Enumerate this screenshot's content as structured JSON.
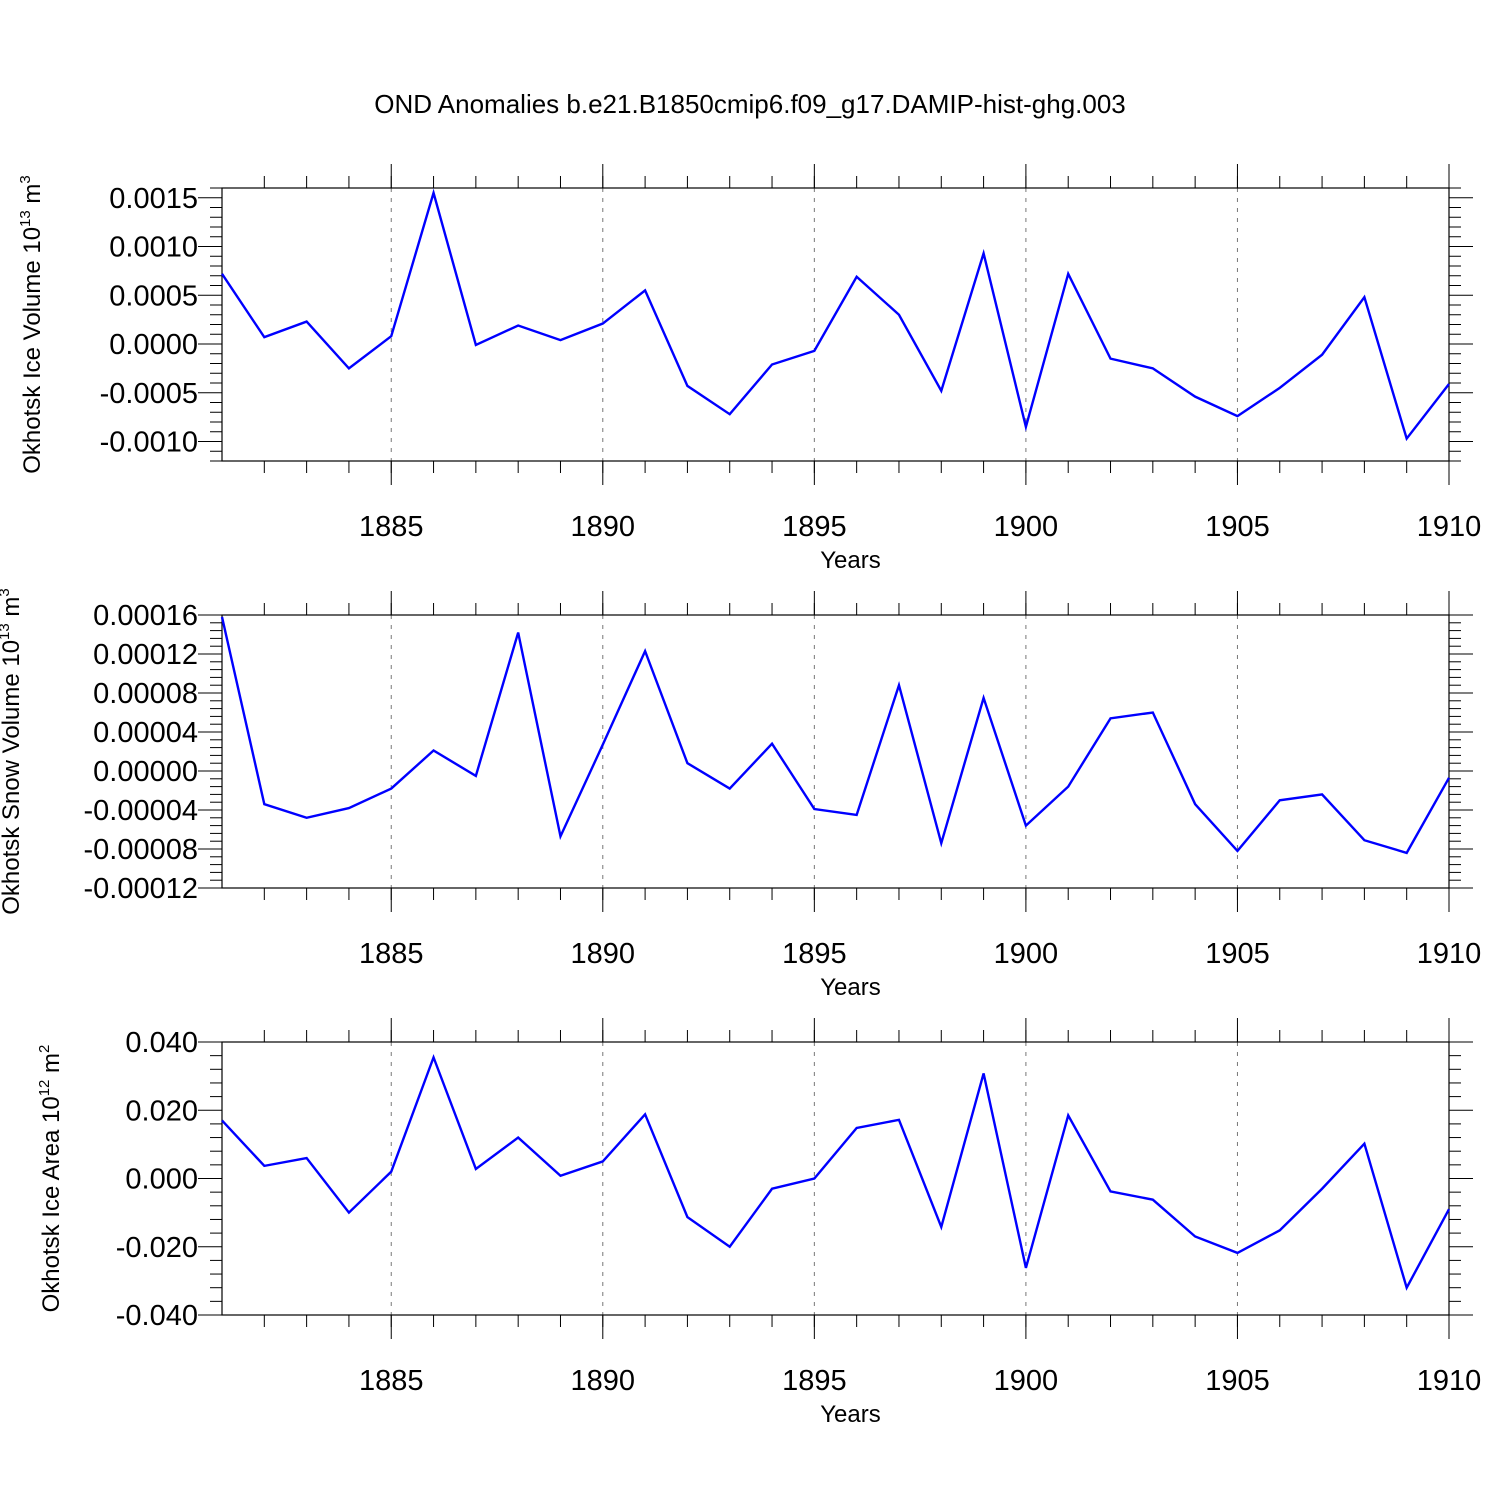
{
  "title": "OND Anomalies b.e21.B1850cmip6.f09_g17.DAMIP-hist-ghg.003",
  "colors": {
    "line": "#0000ff",
    "axis": "#000000",
    "grid": "#777777"
  },
  "chart_data": [
    {
      "type": "line",
      "title": "OND Anomalies b.e21.B1850cmip6.f09_g17.DAMIP-hist-ghg.003",
      "xlabel": "Years",
      "ylabel": "Okhotsk Ice Volume 10",
      "ylabel_exponent": "13",
      "ylabel_unit": " m",
      "ylabel_unit_exponent": "3",
      "xlim": [
        1881,
        1910
      ],
      "ylim": [
        -0.0012,
        0.0016
      ],
      "x_ticks": [
        1885,
        1890,
        1895,
        1900,
        1905,
        1910
      ],
      "x_tick_labels": [
        "1885",
        "1890",
        "1895",
        "1900",
        "1905",
        "1910"
      ],
      "y_ticks": [
        -0.001,
        -0.0005,
        0.0,
        0.0005,
        0.001,
        0.0015
      ],
      "y_tick_labels": [
        "-0.0010",
        "-0.0005",
        "0.0000",
        "0.0005",
        "0.0010",
        "0.0015"
      ],
      "grid": "vertical dashed at major x ticks",
      "x": [
        1881,
        1882,
        1883,
        1884,
        1885,
        1886,
        1887,
        1888,
        1889,
        1890,
        1891,
        1892,
        1893,
        1894,
        1895,
        1896,
        1897,
        1898,
        1899,
        1900,
        1901,
        1902,
        1903,
        1904,
        1905,
        1906,
        1907,
        1908,
        1909,
        1910
      ],
      "series": [
        {
          "name": "Okhotsk Ice Volume",
          "values": [
            0.00072,
            7e-05,
            0.00023,
            -0.00025,
            8e-05,
            0.00155,
            -1e-05,
            0.00019,
            4e-05,
            0.00021,
            0.00055,
            -0.00043,
            -0.00072,
            -0.00021,
            -7e-05,
            0.00069,
            0.0003,
            -0.00048,
            0.00093,
            -0.00085,
            0.00072,
            -0.00015,
            -0.00025,
            -0.00054,
            -0.00074,
            -0.00045,
            -0.00011,
            0.00048,
            -0.00097,
            -0.00041
          ]
        }
      ]
    },
    {
      "type": "line",
      "xlabel": "Years",
      "ylabel": "Okhotsk Snow Volume 10",
      "ylabel_exponent": "13",
      "ylabel_unit": " m",
      "ylabel_unit_exponent": "3",
      "xlim": [
        1881,
        1910
      ],
      "ylim": [
        -0.00012,
        0.00016
      ],
      "x_ticks": [
        1885,
        1890,
        1895,
        1900,
        1905,
        1910
      ],
      "x_tick_labels": [
        "1885",
        "1890",
        "1895",
        "1900",
        "1905",
        "1910"
      ],
      "y_ticks": [
        -0.00012,
        -8e-05,
        -4e-05,
        0.0,
        4e-05,
        8e-05,
        0.00012,
        0.00016
      ],
      "y_tick_labels": [
        "-0.00012",
        "-0.00008",
        "-0.00004",
        "0.00000",
        "0.00004",
        "0.00008",
        "0.00012",
        "0.00016"
      ],
      "grid": "vertical dashed at major x ticks",
      "x": [
        1881,
        1882,
        1883,
        1884,
        1885,
        1886,
        1887,
        1888,
        1889,
        1890,
        1891,
        1892,
        1893,
        1894,
        1895,
        1896,
        1897,
        1898,
        1899,
        1900,
        1901,
        1902,
        1903,
        1904,
        1905,
        1906,
        1907,
        1908,
        1909,
        1910
      ],
      "series": [
        {
          "name": "Okhotsk Snow Volume",
          "values": [
            0.000158,
            -3.4e-05,
            -4.8e-05,
            -3.8e-05,
            -1.8e-05,
            2.1e-05,
            -5e-06,
            0.000142,
            -6.7e-05,
            2.7e-05,
            0.000123,
            8e-06,
            -1.8e-05,
            2.8e-05,
            -3.9e-05,
            -4.5e-05,
            8.8e-05,
            -7.4e-05,
            7.5e-05,
            -5.6e-05,
            -1.6e-05,
            5.4e-05,
            6e-05,
            -3.4e-05,
            -8.2e-05,
            -3e-05,
            -2.4e-05,
            -7.1e-05,
            -8.4e-05,
            -7e-06
          ]
        }
      ]
    },
    {
      "type": "line",
      "xlabel": "Years",
      "ylabel": "Okhotsk Ice Area 10",
      "ylabel_exponent": "12",
      "ylabel_unit": " m",
      "ylabel_unit_exponent": "2",
      "xlim": [
        1881,
        1910
      ],
      "ylim": [
        -0.04,
        0.04
      ],
      "x_ticks": [
        1885,
        1890,
        1895,
        1900,
        1905,
        1910
      ],
      "x_tick_labels": [
        "1885",
        "1890",
        "1895",
        "1900",
        "1905",
        "1910"
      ],
      "y_ticks": [
        -0.04,
        -0.02,
        0.0,
        0.02,
        0.04
      ],
      "y_tick_labels": [
        "-0.040",
        "-0.020",
        "0.000",
        "0.020",
        "0.040"
      ],
      "grid": "vertical dashed at major x ticks",
      "x": [
        1881,
        1882,
        1883,
        1884,
        1885,
        1886,
        1887,
        1888,
        1889,
        1890,
        1891,
        1892,
        1893,
        1894,
        1895,
        1896,
        1897,
        1898,
        1899,
        1900,
        1901,
        1902,
        1903,
        1904,
        1905,
        1906,
        1907,
        1908,
        1909,
        1910
      ],
      "series": [
        {
          "name": "Okhotsk Ice Area",
          "values": [
            0.017,
            0.0037,
            0.006,
            -0.01,
            0.002,
            0.0355,
            0.0028,
            0.012,
            0.0008,
            0.005,
            0.0188,
            -0.0113,
            -0.02,
            -0.003,
            0.0,
            0.0148,
            0.0172,
            -0.0142,
            0.0308,
            -0.0262,
            0.0185,
            -0.0038,
            -0.0062,
            -0.017,
            -0.0218,
            -0.0152,
            -0.003,
            0.0102,
            -0.032,
            -0.009
          ]
        }
      ]
    }
  ]
}
